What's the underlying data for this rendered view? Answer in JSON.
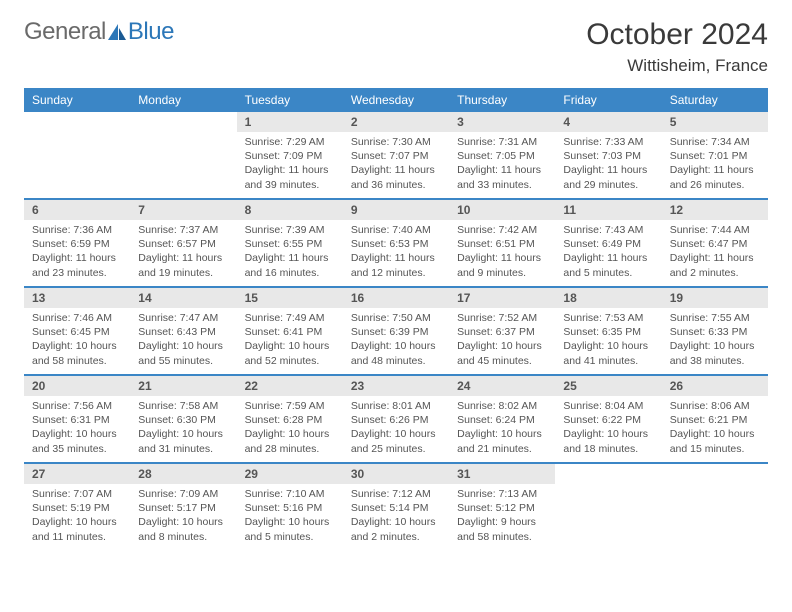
{
  "logo": {
    "general": "General",
    "blue": "Blue"
  },
  "title": "October 2024",
  "location": "Wittisheim, France",
  "colors": {
    "header_bg": "#3b86c6",
    "header_text": "#ffffff",
    "daynum_bg": "#e8e8e8",
    "border": "#3b86c6",
    "logo_general": "#6a6a6a",
    "logo_blue": "#2c77b8",
    "body_text": "#555555"
  },
  "dow": [
    "Sunday",
    "Monday",
    "Tuesday",
    "Wednesday",
    "Thursday",
    "Friday",
    "Saturday"
  ],
  "weeks": [
    [
      {
        "n": "",
        "sr": "",
        "ss": "",
        "dl": ""
      },
      {
        "n": "",
        "sr": "",
        "ss": "",
        "dl": ""
      },
      {
        "n": "1",
        "sr": "Sunrise: 7:29 AM",
        "ss": "Sunset: 7:09 PM",
        "dl": "Daylight: 11 hours and 39 minutes."
      },
      {
        "n": "2",
        "sr": "Sunrise: 7:30 AM",
        "ss": "Sunset: 7:07 PM",
        "dl": "Daylight: 11 hours and 36 minutes."
      },
      {
        "n": "3",
        "sr": "Sunrise: 7:31 AM",
        "ss": "Sunset: 7:05 PM",
        "dl": "Daylight: 11 hours and 33 minutes."
      },
      {
        "n": "4",
        "sr": "Sunrise: 7:33 AM",
        "ss": "Sunset: 7:03 PM",
        "dl": "Daylight: 11 hours and 29 minutes."
      },
      {
        "n": "5",
        "sr": "Sunrise: 7:34 AM",
        "ss": "Sunset: 7:01 PM",
        "dl": "Daylight: 11 hours and 26 minutes."
      }
    ],
    [
      {
        "n": "6",
        "sr": "Sunrise: 7:36 AM",
        "ss": "Sunset: 6:59 PM",
        "dl": "Daylight: 11 hours and 23 minutes."
      },
      {
        "n": "7",
        "sr": "Sunrise: 7:37 AM",
        "ss": "Sunset: 6:57 PM",
        "dl": "Daylight: 11 hours and 19 minutes."
      },
      {
        "n": "8",
        "sr": "Sunrise: 7:39 AM",
        "ss": "Sunset: 6:55 PM",
        "dl": "Daylight: 11 hours and 16 minutes."
      },
      {
        "n": "9",
        "sr": "Sunrise: 7:40 AM",
        "ss": "Sunset: 6:53 PM",
        "dl": "Daylight: 11 hours and 12 minutes."
      },
      {
        "n": "10",
        "sr": "Sunrise: 7:42 AM",
        "ss": "Sunset: 6:51 PM",
        "dl": "Daylight: 11 hours and 9 minutes."
      },
      {
        "n": "11",
        "sr": "Sunrise: 7:43 AM",
        "ss": "Sunset: 6:49 PM",
        "dl": "Daylight: 11 hours and 5 minutes."
      },
      {
        "n": "12",
        "sr": "Sunrise: 7:44 AM",
        "ss": "Sunset: 6:47 PM",
        "dl": "Daylight: 11 hours and 2 minutes."
      }
    ],
    [
      {
        "n": "13",
        "sr": "Sunrise: 7:46 AM",
        "ss": "Sunset: 6:45 PM",
        "dl": "Daylight: 10 hours and 58 minutes."
      },
      {
        "n": "14",
        "sr": "Sunrise: 7:47 AM",
        "ss": "Sunset: 6:43 PM",
        "dl": "Daylight: 10 hours and 55 minutes."
      },
      {
        "n": "15",
        "sr": "Sunrise: 7:49 AM",
        "ss": "Sunset: 6:41 PM",
        "dl": "Daylight: 10 hours and 52 minutes."
      },
      {
        "n": "16",
        "sr": "Sunrise: 7:50 AM",
        "ss": "Sunset: 6:39 PM",
        "dl": "Daylight: 10 hours and 48 minutes."
      },
      {
        "n": "17",
        "sr": "Sunrise: 7:52 AM",
        "ss": "Sunset: 6:37 PM",
        "dl": "Daylight: 10 hours and 45 minutes."
      },
      {
        "n": "18",
        "sr": "Sunrise: 7:53 AM",
        "ss": "Sunset: 6:35 PM",
        "dl": "Daylight: 10 hours and 41 minutes."
      },
      {
        "n": "19",
        "sr": "Sunrise: 7:55 AM",
        "ss": "Sunset: 6:33 PM",
        "dl": "Daylight: 10 hours and 38 minutes."
      }
    ],
    [
      {
        "n": "20",
        "sr": "Sunrise: 7:56 AM",
        "ss": "Sunset: 6:31 PM",
        "dl": "Daylight: 10 hours and 35 minutes."
      },
      {
        "n": "21",
        "sr": "Sunrise: 7:58 AM",
        "ss": "Sunset: 6:30 PM",
        "dl": "Daylight: 10 hours and 31 minutes."
      },
      {
        "n": "22",
        "sr": "Sunrise: 7:59 AM",
        "ss": "Sunset: 6:28 PM",
        "dl": "Daylight: 10 hours and 28 minutes."
      },
      {
        "n": "23",
        "sr": "Sunrise: 8:01 AM",
        "ss": "Sunset: 6:26 PM",
        "dl": "Daylight: 10 hours and 25 minutes."
      },
      {
        "n": "24",
        "sr": "Sunrise: 8:02 AM",
        "ss": "Sunset: 6:24 PM",
        "dl": "Daylight: 10 hours and 21 minutes."
      },
      {
        "n": "25",
        "sr": "Sunrise: 8:04 AM",
        "ss": "Sunset: 6:22 PM",
        "dl": "Daylight: 10 hours and 18 minutes."
      },
      {
        "n": "26",
        "sr": "Sunrise: 8:06 AM",
        "ss": "Sunset: 6:21 PM",
        "dl": "Daylight: 10 hours and 15 minutes."
      }
    ],
    [
      {
        "n": "27",
        "sr": "Sunrise: 7:07 AM",
        "ss": "Sunset: 5:19 PM",
        "dl": "Daylight: 10 hours and 11 minutes."
      },
      {
        "n": "28",
        "sr": "Sunrise: 7:09 AM",
        "ss": "Sunset: 5:17 PM",
        "dl": "Daylight: 10 hours and 8 minutes."
      },
      {
        "n": "29",
        "sr": "Sunrise: 7:10 AM",
        "ss": "Sunset: 5:16 PM",
        "dl": "Daylight: 10 hours and 5 minutes."
      },
      {
        "n": "30",
        "sr": "Sunrise: 7:12 AM",
        "ss": "Sunset: 5:14 PM",
        "dl": "Daylight: 10 hours and 2 minutes."
      },
      {
        "n": "31",
        "sr": "Sunrise: 7:13 AM",
        "ss": "Sunset: 5:12 PM",
        "dl": "Daylight: 9 hours and 58 minutes."
      },
      {
        "n": "",
        "sr": "",
        "ss": "",
        "dl": ""
      },
      {
        "n": "",
        "sr": "",
        "ss": "",
        "dl": ""
      }
    ]
  ]
}
